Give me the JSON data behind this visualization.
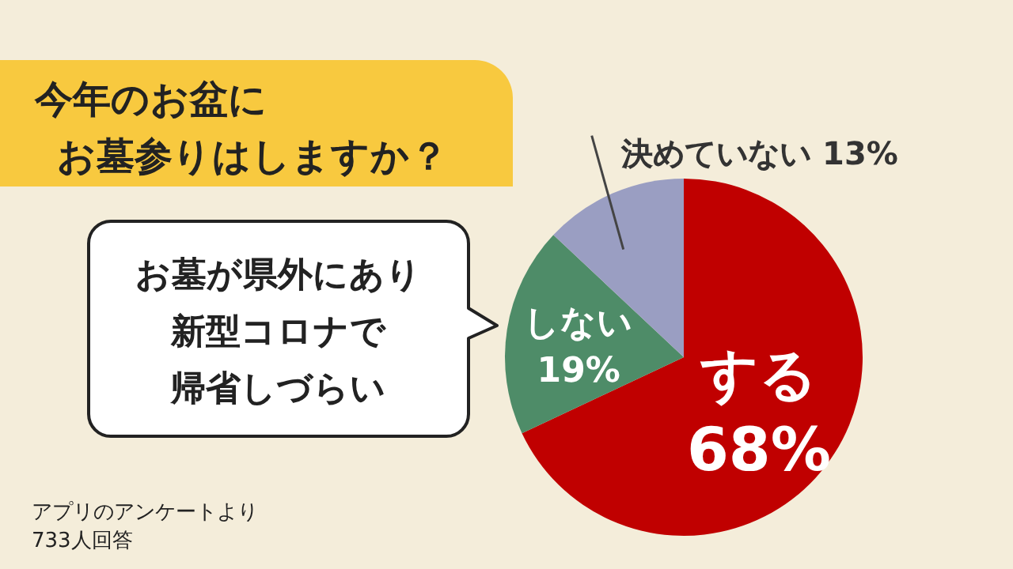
{
  "chart_data": {
    "type": "pie",
    "title": "今年のお盆に",
    "subtitle": "お墓参りはしますか？",
    "categories": [
      "する",
      "しない",
      "決めていない"
    ],
    "values": [
      68,
      19,
      13
    ],
    "colors": [
      "#c00000",
      "#4e8c68",
      "#9a9ec2"
    ],
    "value_labels": [
      "68%",
      "19%",
      "13%"
    ],
    "annotations": [
      "お墓が県外にあり",
      "新型コロナで",
      "帰省しづらい",
      "アプリのアンケートより",
      "733人回答"
    ]
  }
}
